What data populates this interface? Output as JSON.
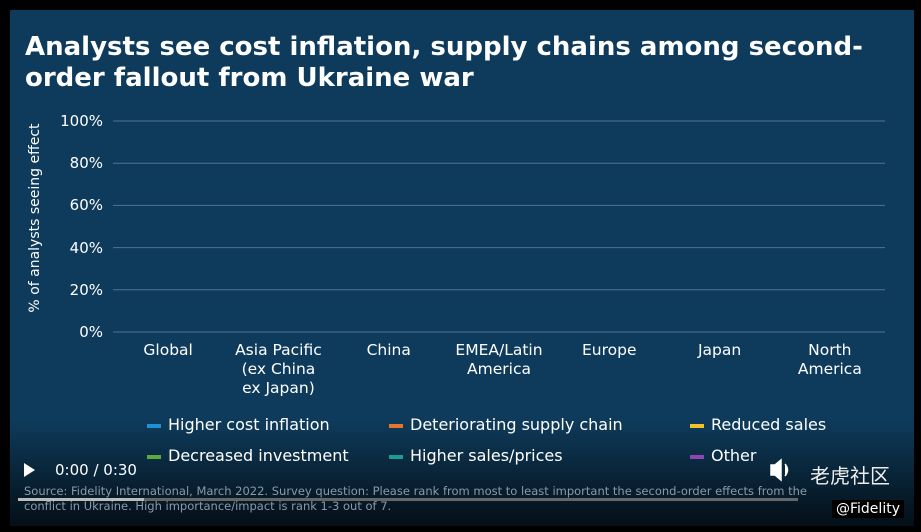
{
  "chart_data": {
    "type": "bar",
    "title": "Analysts see cost inflation, supply chains among second-order fallout from Ukraine war",
    "y_label": "% of analysts seeing effect",
    "categories": [
      "Global",
      "Asia Pacific\n(ex China\nex Japan)",
      "China",
      "EMEA/Latin\nAmerica",
      "Europe",
      "Japan",
      "North\nAmerica"
    ],
    "series": [
      {
        "name": "Higher cost inflation",
        "color": "#1f8fd8"
      },
      {
        "name": "Deteriorating supply chain",
        "color": "#e8742a"
      },
      {
        "name": "Reduced sales",
        "color": "#f3c12c"
      },
      {
        "name": "Decreased investment",
        "color": "#5fa83a"
      },
      {
        "name": "Higher sales/prices",
        "color": "#1a9d96"
      },
      {
        "name": "Other",
        "color": "#8f45b0"
      }
    ],
    "ylim": [
      0,
      100
    ],
    "yticks": [
      {
        "value": 0,
        "label": "0%"
      },
      {
        "value": 20,
        "label": "20%"
      },
      {
        "value": 40,
        "label": "40%"
      },
      {
        "value": 60,
        "label": "60%"
      },
      {
        "value": 80,
        "label": "80%"
      },
      {
        "value": 100,
        "label": "100%"
      }
    ],
    "grid": true,
    "source": "Source: Fidelity International, March 2022. Survey question: Please rank from most to least important the second-order effects from the conflict in Ukraine. High importance/impact is rank 1-3 out of 7."
  },
  "player": {
    "time": "0:00 / 0:30",
    "watermark": "老虎社区",
    "credit": "@Fidelity"
  }
}
